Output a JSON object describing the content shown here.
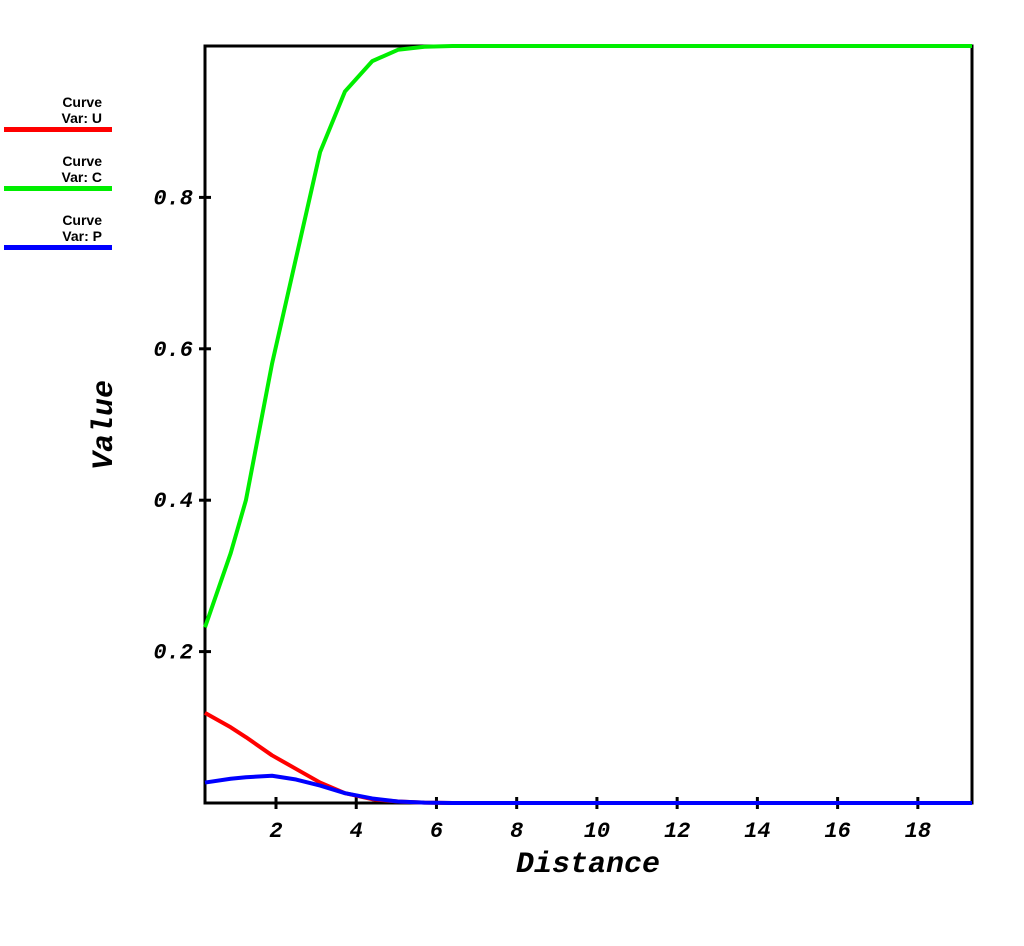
{
  "chart_data": {
    "type": "line",
    "xlabel": "Distance",
    "ylabel": "Value",
    "x": [
      0.23,
      0.87,
      1.25,
      1.9,
      2.5,
      3.1,
      3.72,
      4.4,
      5.04,
      5.7,
      6.4,
      19.35
    ],
    "series": [
      {
        "name": "Curve\nVar: U",
        "color": "#ff0000",
        "values": [
          0.119,
          0.1,
          0.087,
          0.063,
          0.045,
          0.027,
          0.013,
          0.005,
          0.002,
          0.0005,
          0,
          0
        ]
      },
      {
        "name": "Curve\nVar: C",
        "color": "#00ee00",
        "values": [
          0.232,
          0.33,
          0.4,
          0.58,
          0.72,
          0.86,
          0.94,
          0.98,
          0.995,
          0.999,
          1.0,
          1.0
        ]
      },
      {
        "name": "Curve\nVar: P",
        "color": "#0000ff",
        "values": [
          0.027,
          0.032,
          0.034,
          0.036,
          0.031,
          0.023,
          0.013,
          0.006,
          0.002,
          0.0005,
          0,
          0
        ]
      }
    ],
    "xlim": [
      0.23,
      19.35
    ],
    "ylim": [
      0,
      1
    ],
    "xticks": [
      2,
      4,
      6,
      8,
      10,
      12,
      14,
      16,
      18
    ],
    "yticks": [
      0.2,
      0.4,
      0.6,
      0.8
    ],
    "legend": "upper left"
  }
}
